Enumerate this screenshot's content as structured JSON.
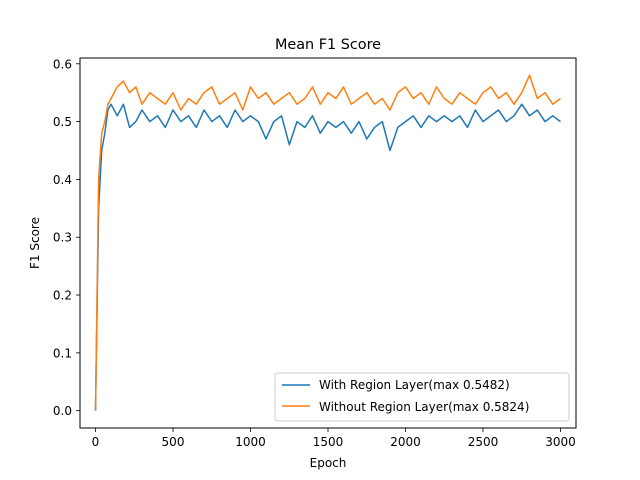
{
  "chart_data": {
    "type": "line",
    "title": "Mean F1 Score",
    "xlabel": "Epoch",
    "ylabel": "F1 Score",
    "xlim": [
      -100,
      3100
    ],
    "ylim": [
      -0.03,
      0.61
    ],
    "xticks": [
      0,
      500,
      1000,
      1500,
      2000,
      2500,
      3000
    ],
    "yticks": [
      0.0,
      0.1,
      0.2,
      0.3,
      0.4,
      0.5,
      0.6
    ],
    "xtick_labels": [
      "0",
      "500",
      "1000",
      "1500",
      "2000",
      "2500",
      "3000"
    ],
    "ytick_labels": [
      "0.0",
      "0.1",
      "0.2",
      "0.3",
      "0.4",
      "0.5",
      "0.6"
    ],
    "grid": false,
    "legend_position": "bottom-right",
    "series": [
      {
        "name": "With Region Layer(max 0.5482)",
        "color": "#1f77b4",
        "x": [
          0,
          20,
          40,
          60,
          80,
          100,
          140,
          180,
          220,
          260,
          300,
          350,
          400,
          450,
          500,
          550,
          600,
          650,
          700,
          750,
          800,
          850,
          900,
          950,
          1000,
          1050,
          1100,
          1150,
          1200,
          1250,
          1300,
          1350,
          1400,
          1450,
          1500,
          1550,
          1600,
          1650,
          1700,
          1750,
          1800,
          1850,
          1900,
          1950,
          2000,
          2050,
          2100,
          2150,
          2200,
          2250,
          2300,
          2350,
          2400,
          2450,
          2500,
          2550,
          2600,
          2650,
          2700,
          2750,
          2800,
          2850,
          2900,
          2950,
          3000
        ],
        "y": [
          0.0,
          0.35,
          0.45,
          0.48,
          0.52,
          0.53,
          0.51,
          0.53,
          0.49,
          0.5,
          0.52,
          0.5,
          0.51,
          0.49,
          0.52,
          0.5,
          0.51,
          0.49,
          0.52,
          0.5,
          0.51,
          0.49,
          0.52,
          0.5,
          0.51,
          0.5,
          0.47,
          0.5,
          0.51,
          0.46,
          0.5,
          0.49,
          0.51,
          0.48,
          0.5,
          0.49,
          0.5,
          0.48,
          0.5,
          0.47,
          0.49,
          0.5,
          0.45,
          0.49,
          0.5,
          0.51,
          0.49,
          0.51,
          0.5,
          0.51,
          0.5,
          0.51,
          0.49,
          0.52,
          0.5,
          0.51,
          0.52,
          0.5,
          0.51,
          0.53,
          0.51,
          0.52,
          0.5,
          0.51,
          0.5
        ]
      },
      {
        "name": "Without Region Layer(max 0.5824)",
        "color": "#ff7f0e",
        "x": [
          0,
          20,
          40,
          60,
          80,
          100,
          140,
          180,
          220,
          260,
          300,
          350,
          400,
          450,
          500,
          550,
          600,
          650,
          700,
          750,
          800,
          850,
          900,
          950,
          1000,
          1050,
          1100,
          1150,
          1200,
          1250,
          1300,
          1350,
          1400,
          1450,
          1500,
          1550,
          1600,
          1650,
          1700,
          1750,
          1800,
          1850,
          1900,
          1950,
          2000,
          2050,
          2100,
          2150,
          2200,
          2250,
          2300,
          2350,
          2400,
          2450,
          2500,
          2550,
          2600,
          2650,
          2700,
          2750,
          2800,
          2850,
          2900,
          2950,
          3000
        ],
        "y": [
          0.0,
          0.4,
          0.48,
          0.5,
          0.53,
          0.54,
          0.56,
          0.57,
          0.55,
          0.56,
          0.53,
          0.55,
          0.54,
          0.53,
          0.55,
          0.52,
          0.54,
          0.53,
          0.55,
          0.56,
          0.53,
          0.54,
          0.55,
          0.52,
          0.56,
          0.54,
          0.55,
          0.53,
          0.54,
          0.55,
          0.53,
          0.54,
          0.56,
          0.53,
          0.55,
          0.54,
          0.56,
          0.53,
          0.54,
          0.55,
          0.53,
          0.54,
          0.52,
          0.55,
          0.56,
          0.54,
          0.55,
          0.53,
          0.56,
          0.54,
          0.53,
          0.55,
          0.54,
          0.53,
          0.55,
          0.56,
          0.54,
          0.55,
          0.53,
          0.55,
          0.58,
          0.54,
          0.55,
          0.53,
          0.54
        ]
      }
    ]
  }
}
